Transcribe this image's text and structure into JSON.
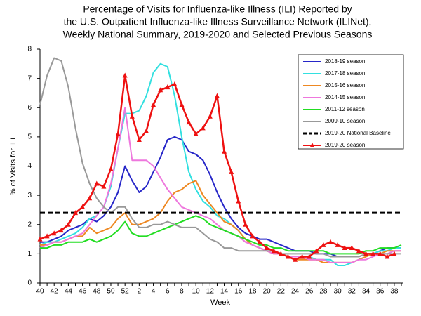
{
  "chart_data": {
    "type": "line",
    "title": [
      "Percentage of Visits for Influenza-like Illness (ILI) Reported by",
      "the U.S. Outpatient Influenza-like Illness Surveillance Network (ILINet),",
      "Weekly National Summary, 2019-2020 and Selected Previous Seasons"
    ],
    "x_label": "Week",
    "y_label": "% of Visits for ILI",
    "categories": [
      "40",
      null,
      "42",
      null,
      "44",
      null,
      "46",
      null,
      "48",
      null,
      "50",
      null,
      "52",
      null,
      "2",
      null,
      "4",
      null,
      "6",
      null,
      "8",
      null,
      "10",
      null,
      "12",
      null,
      "14",
      null,
      "16",
      null,
      "18",
      null,
      "20",
      null,
      "22",
      null,
      "24",
      null,
      "26",
      null,
      "28",
      null,
      "30",
      null,
      "32",
      null,
      "34",
      null,
      "36",
      null,
      "38",
      null
    ],
    "ylim": [
      0,
      8
    ],
    "yticks": [
      0,
      1,
      2,
      3,
      4,
      5,
      6,
      7,
      8
    ],
    "series": [
      {
        "name": "2018-19 season",
        "color": "#2626c8",
        "values": [
          1.4,
          1.4,
          1.5,
          1.6,
          1.8,
          1.9,
          2.0,
          2.2,
          2.1,
          2.3,
          2.6,
          3.1,
          4.0,
          3.5,
          3.1,
          3.3,
          3.8,
          4.3,
          4.9,
          5.0,
          4.9,
          4.5,
          4.4,
          4.2,
          3.7,
          3.1,
          2.6,
          2.2,
          1.9,
          1.7,
          1.6,
          1.5,
          1.5,
          1.4,
          1.3,
          1.2,
          1.1,
          1.1,
          1.1,
          1.0,
          1.0,
          1.0,
          0.9,
          0.9,
          0.9,
          0.9,
          1.0,
          1.0,
          1.1,
          1.2,
          1.2,
          1.2
        ]
      },
      {
        "name": "2017-18 season",
        "color": "#33e0e0",
        "values": [
          1.3,
          1.4,
          1.4,
          1.5,
          1.6,
          1.7,
          1.9,
          2.2,
          2.3,
          2.6,
          3.3,
          4.6,
          5.8,
          5.8,
          5.9,
          6.4,
          7.2,
          7.5,
          7.4,
          6.4,
          5.0,
          3.8,
          3.2,
          2.8,
          2.6,
          2.3,
          2.2,
          2.0,
          1.8,
          1.5,
          1.3,
          1.2,
          1.1,
          1.0,
          1.0,
          0.9,
          0.9,
          0.9,
          0.9,
          0.8,
          0.8,
          0.8,
          0.6,
          0.6,
          0.7,
          0.8,
          0.9,
          1.0,
          1.1,
          1.1,
          1.2,
          1.2
        ]
      },
      {
        "name": "2015-16 season",
        "color": "#ee8822",
        "values": [
          1.3,
          1.3,
          1.4,
          1.4,
          1.5,
          1.6,
          1.6,
          1.9,
          1.7,
          1.8,
          1.9,
          2.2,
          2.4,
          2.0,
          2.0,
          2.1,
          2.2,
          2.4,
          2.8,
          3.1,
          3.2,
          3.4,
          3.5,
          3.0,
          2.7,
          2.4,
          2.1,
          2.0,
          1.8,
          1.5,
          1.3,
          1.2,
          1.1,
          1.0,
          1.0,
          0.9,
          0.8,
          0.8,
          0.8,
          0.8,
          0.7,
          0.7,
          0.7,
          0.7,
          0.7,
          0.8,
          0.9,
          1.0,
          1.0,
          1.1,
          1.1,
          1.1
        ]
      },
      {
        "name": "2014-15 season",
        "color": "#ee77dd",
        "values": [
          1.2,
          1.3,
          1.4,
          1.4,
          1.5,
          1.6,
          1.7,
          2.0,
          2.3,
          2.6,
          3.4,
          4.6,
          6.0,
          4.2,
          4.2,
          4.2,
          4.0,
          3.6,
          3.2,
          2.9,
          2.6,
          2.5,
          2.4,
          2.3,
          2.2,
          2.0,
          1.8,
          1.7,
          1.6,
          1.4,
          1.3,
          1.2,
          1.1,
          1.0,
          1.0,
          0.9,
          0.9,
          0.9,
          0.8,
          0.8,
          0.8,
          0.7,
          0.7,
          0.7,
          0.7,
          0.8,
          0.8,
          0.9,
          1.0,
          1.0,
          1.1,
          1.1
        ]
      },
      {
        "name": "2011-12 season",
        "color": "#22dd22",
        "values": [
          1.2,
          1.2,
          1.3,
          1.3,
          1.4,
          1.4,
          1.4,
          1.5,
          1.4,
          1.5,
          1.6,
          1.8,
          2.1,
          1.7,
          1.6,
          1.6,
          1.7,
          1.8,
          1.9,
          2.0,
          2.1,
          2.2,
          2.3,
          2.2,
          2.0,
          1.9,
          1.8,
          1.7,
          1.6,
          1.5,
          1.4,
          1.3,
          1.3,
          1.2,
          1.2,
          1.1,
          1.1,
          1.1,
          1.1,
          1.1,
          1.1,
          1.0,
          1.0,
          1.0,
          1.0,
          1.0,
          1.1,
          1.1,
          1.2,
          1.2,
          1.2,
          1.3
        ]
      },
      {
        "name": "2009-10 season",
        "color": "#999999",
        "values": [
          6.1,
          7.1,
          7.7,
          7.6,
          6.7,
          5.3,
          4.1,
          3.4,
          2.9,
          2.6,
          2.4,
          2.6,
          2.6,
          2.2,
          1.9,
          1.9,
          2.0,
          2.0,
          2.1,
          2.0,
          1.9,
          1.9,
          1.9,
          1.7,
          1.5,
          1.4,
          1.2,
          1.2,
          1.1,
          1.1,
          1.1,
          1.1,
          1.1,
          1.1,
          1.0,
          1.0,
          1.0,
          1.0,
          1.0,
          1.0,
          1.0,
          0.9,
          0.9,
          0.9,
          0.9,
          0.9,
          1.0,
          1.0,
          1.0,
          1.0,
          1.0,
          1.0
        ]
      },
      {
        "name": "2019-20 National Baseline",
        "color": "#000000",
        "dashed": true,
        "values": [
          2.4,
          2.4,
          2.4,
          2.4,
          2.4,
          2.4,
          2.4,
          2.4,
          2.4,
          2.4,
          2.4,
          2.4,
          2.4,
          2.4,
          2.4,
          2.4,
          2.4,
          2.4,
          2.4,
          2.4,
          2.4,
          2.4,
          2.4,
          2.4,
          2.4,
          2.4,
          2.4,
          2.4,
          2.4,
          2.4,
          2.4,
          2.4,
          2.4,
          2.4,
          2.4,
          2.4,
          2.4,
          2.4,
          2.4,
          2.4,
          2.4,
          2.4,
          2.4,
          2.4,
          2.4,
          2.4,
          2.4,
          2.4,
          2.4,
          2.4,
          2.4,
          2.4
        ]
      },
      {
        "name": "2019-20 season",
        "color": "#ee1111",
        "markers": "triangle",
        "values": [
          1.5,
          1.6,
          1.7,
          1.8,
          2.0,
          2.4,
          2.6,
          2.9,
          3.4,
          3.3,
          3.9,
          5.1,
          7.1,
          5.7,
          4.9,
          5.2,
          6.1,
          6.6,
          6.7,
          6.8,
          6.1,
          5.5,
          5.1,
          5.3,
          5.7,
          6.4,
          4.5,
          3.8,
          2.8,
          2.0,
          1.6,
          1.4,
          1.2,
          1.1,
          1.0,
          0.9,
          0.8,
          0.9,
          0.9,
          1.1,
          1.3,
          1.4,
          1.3,
          1.2,
          1.2,
          1.1,
          1.0,
          1.0,
          1.0,
          0.9,
          1.0,
          null
        ]
      }
    ]
  }
}
